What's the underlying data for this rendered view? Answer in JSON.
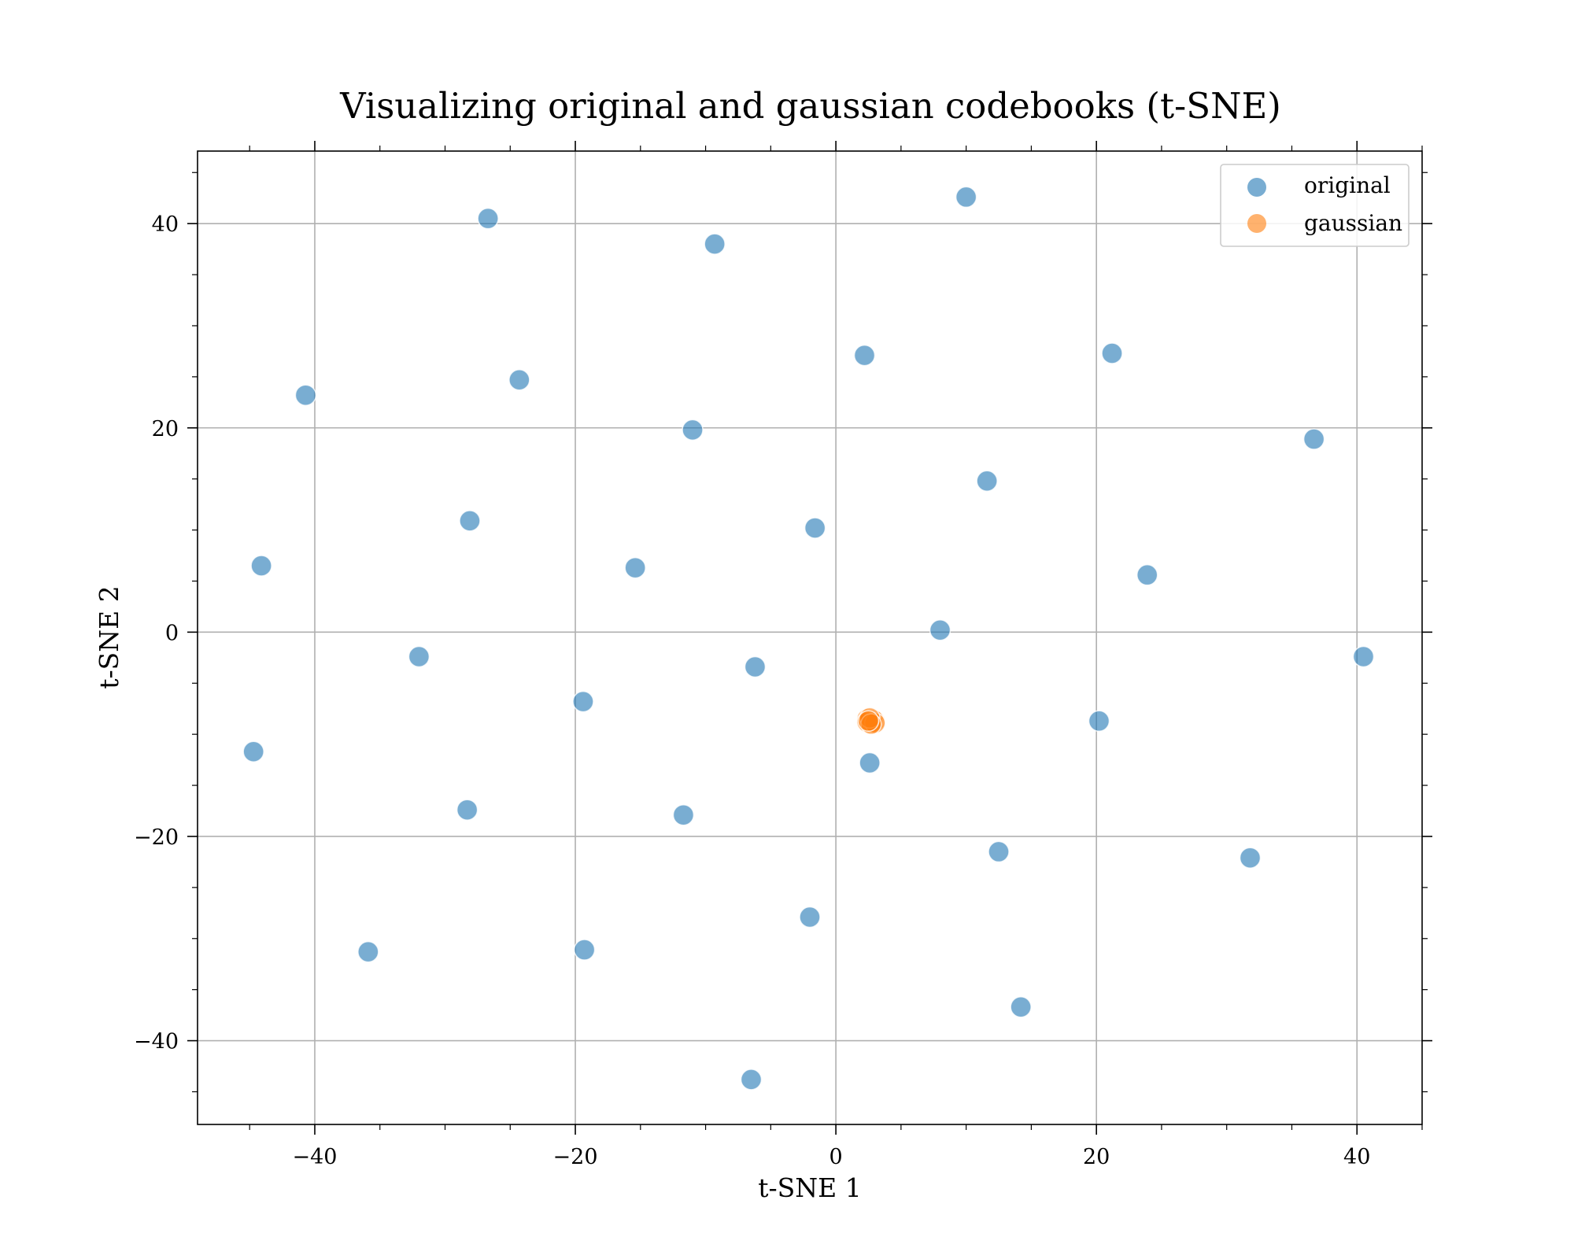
{
  "chart_data": {
    "type": "scatter",
    "title": "Visualizing original and gaussian codebooks (t-SNE)",
    "xlabel": "t-SNE 1",
    "ylabel": "t-SNE 2",
    "xlim": [
      -49,
      45
    ],
    "ylim": [
      -48.2,
      47.1
    ],
    "xticks": [
      -40,
      -20,
      0,
      20,
      40
    ],
    "yticks": [
      -40,
      -20,
      0,
      20,
      40
    ],
    "xtick_labels": [
      "−40",
      "−20",
      "0",
      "20",
      "40"
    ],
    "ytick_labels": [
      "−40",
      "−20",
      "0",
      "20",
      "40"
    ],
    "grid": true,
    "legend_position": "top-right",
    "series": [
      {
        "name": "original",
        "color": "#1f77b4",
        "points": [
          [
            -26.7,
            40.5
          ],
          [
            -9.3,
            38.0
          ],
          [
            10.0,
            42.6
          ],
          [
            -40.7,
            23.2
          ],
          [
            -24.3,
            24.7
          ],
          [
            2.2,
            27.1
          ],
          [
            21.2,
            27.3
          ],
          [
            -11.0,
            19.8
          ],
          [
            11.6,
            14.8
          ],
          [
            36.7,
            18.9
          ],
          [
            -28.1,
            10.9
          ],
          [
            -1.6,
            10.2
          ],
          [
            -44.1,
            6.5
          ],
          [
            -15.4,
            6.3
          ],
          [
            23.9,
            5.6
          ],
          [
            8.0,
            0.2
          ],
          [
            -32.0,
            -2.4
          ],
          [
            -6.2,
            -3.4
          ],
          [
            40.5,
            -2.4
          ],
          [
            -19.4,
            -6.8
          ],
          [
            20.2,
            -8.7
          ],
          [
            -44.7,
            -11.7
          ],
          [
            2.6,
            -12.8
          ],
          [
            -28.3,
            -17.4
          ],
          [
            -11.7,
            -17.9
          ],
          [
            12.5,
            -21.5
          ],
          [
            31.8,
            -22.1
          ],
          [
            -2.0,
            -27.9
          ],
          [
            -35.9,
            -31.3
          ],
          [
            -19.3,
            -31.1
          ],
          [
            14.2,
            -36.7
          ],
          [
            -6.5,
            -43.8
          ]
        ]
      },
      {
        "name": "gaussian",
        "color": "#ff7f0e",
        "points": [
          [
            2.5,
            -8.6
          ],
          [
            2.8,
            -8.9
          ],
          [
            3.0,
            -8.7
          ],
          [
            2.6,
            -8.8
          ],
          [
            2.4,
            -8.5
          ],
          [
            2.7,
            -8.7
          ],
          [
            2.9,
            -8.6
          ],
          [
            2.5,
            -8.9
          ],
          [
            2.6,
            -8.6
          ],
          [
            2.8,
            -8.8
          ],
          [
            2.4,
            -8.8
          ],
          [
            3.0,
            -8.9
          ],
          [
            2.6,
            -8.4
          ],
          [
            2.7,
            -9.0
          ],
          [
            2.5,
            -8.7
          ]
        ]
      }
    ]
  }
}
